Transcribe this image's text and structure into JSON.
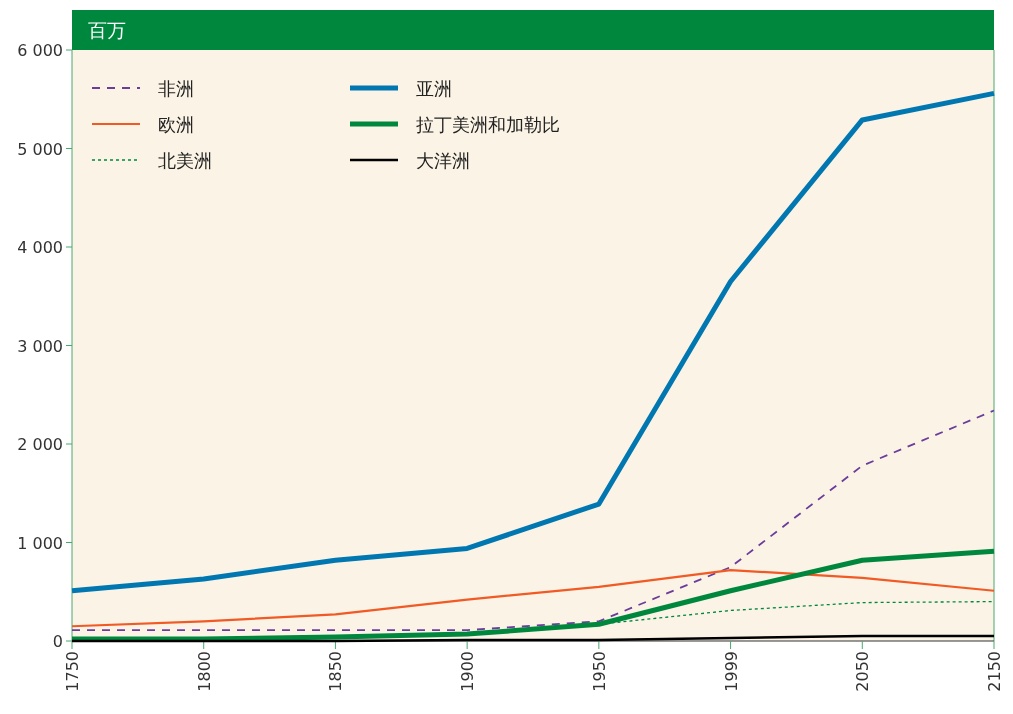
{
  "chart_data": {
    "type": "line",
    "ylabel": "百万",
    "categories": [
      "1750",
      "1800",
      "1850",
      "1900",
      "1950",
      "1999",
      "2050",
      "2150"
    ],
    "ylim": [
      0,
      6000
    ],
    "yticks": [
      0,
      {
        "value": 1000,
        "label": "1 000"
      },
      {
        "value": 2000,
        "label": "2 000"
      },
      {
        "value": 3000,
        "label": "3 000"
      },
      {
        "value": 4000,
        "label": "4 000"
      },
      {
        "value": 5000,
        "label": "5 000"
      },
      {
        "value": 6000,
        "label": "6 000"
      }
    ],
    "grid": false,
    "legend": "top left",
    "marker": "none",
    "series": [
      {
        "name": "非洲",
        "color": "#6a3d9a",
        "line_style": "dashed",
        "values": [
          110,
          110,
          110,
          110,
          200,
          750,
          1780,
          2340
        ]
      },
      {
        "name": "欧洲",
        "color": "#f15a24",
        "line_style": "solid",
        "values": [
          150,
          200,
          270,
          420,
          550,
          720,
          640,
          510
        ]
      },
      {
        "name": "北美洲",
        "color": "#00873e",
        "line_style": "dotted",
        "values": [
          0,
          10,
          30,
          80,
          170,
          310,
          390,
          400
        ]
      },
      {
        "name": "亚洲",
        "color": "#0077b0",
        "line_style": "solid",
        "values": [
          510,
          630,
          820,
          940,
          1390,
          3650,
          5290,
          5560
        ]
      },
      {
        "name": "拉丁美洲和加勒比",
        "color": "#00873e",
        "line_style": "solid",
        "values": [
          20,
          20,
          40,
          70,
          170,
          510,
          820,
          910
        ]
      },
      {
        "name": "大洋洲",
        "color": "#000000",
        "line_style": "solid",
        "values": [
          0,
          0,
          0,
          10,
          10,
          30,
          50,
          50
        ]
      }
    ]
  }
}
